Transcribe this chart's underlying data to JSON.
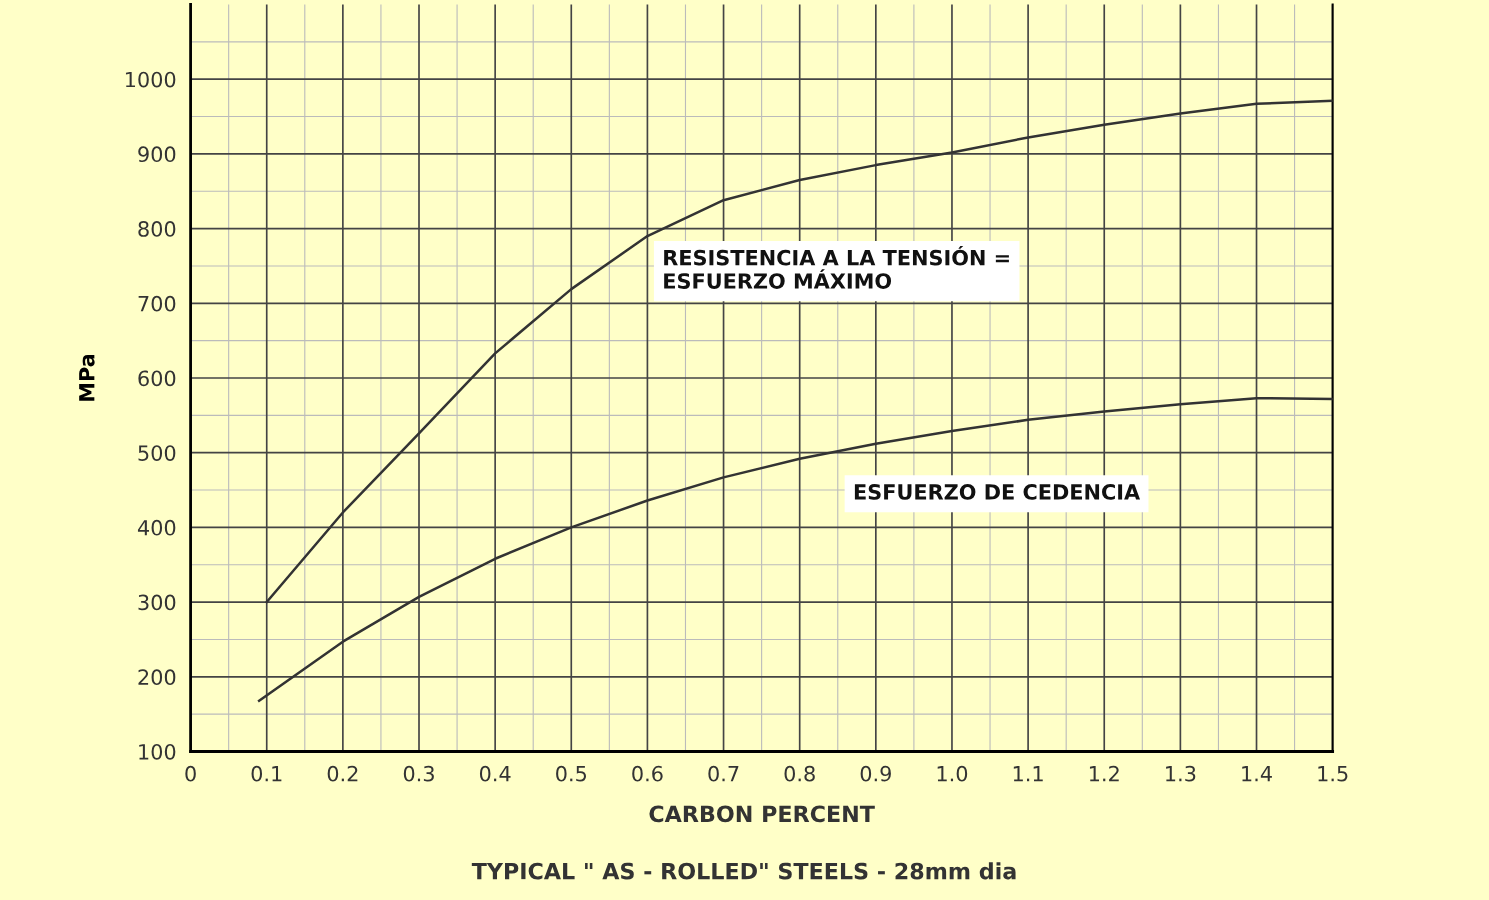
{
  "chart_data": {
    "type": "line",
    "xlabel": "CARBON PERCENT",
    "ylabel": "MPa",
    "annotations": [
      "RESISTENCIA A LA TENSIÓN =\nESFUERZO MÁXIMO",
      "ESFUERZO DE CEDENCIA",
      "TYPICAL \" AS - ROLLED\" STEELS - 28mm dia"
    ],
    "series": [
      {
        "color": "#333333",
        "x": [
          0.1,
          0.2,
          0.3,
          0.4,
          0.5,
          0.6,
          0.7,
          0.8,
          0.9,
          1.0,
          1.1,
          1.2,
          1.3,
          1.4,
          1.5
        ],
        "values": [
          300,
          420,
          526,
          633,
          719,
          790,
          838,
          865,
          885,
          902,
          922,
          939,
          954,
          967,
          971
        ]
      },
      {
        "color": "#333333",
        "x": [
          0.09,
          0.2,
          0.3,
          0.4,
          0.5,
          0.6,
          0.7,
          0.8,
          0.9,
          1.0,
          1.1,
          1.2,
          1.3,
          1.4,
          1.5
        ],
        "values": [
          168,
          247,
          307,
          358,
          400,
          436,
          467,
          492,
          512,
          529,
          544,
          555,
          565,
          573,
          572
        ]
      }
    ],
    "xlim": [
      0,
      1.5
    ],
    "ylim": [
      100,
      1100
    ],
    "xticks": [
      0,
      0.1,
      0.2,
      0.3,
      0.4,
      0.5,
      0.6,
      0.7,
      0.8,
      0.9,
      {
        "value": 1.0,
        "label": "1.0"
      },
      1.1,
      1.2,
      1.3,
      1.4,
      1.5
    ],
    "yticks": [
      100,
      200,
      300,
      400,
      500,
      600,
      700,
      800,
      900,
      1000
    ],
    "grid": true,
    "marker": "none",
    "line_style": "solid"
  }
}
